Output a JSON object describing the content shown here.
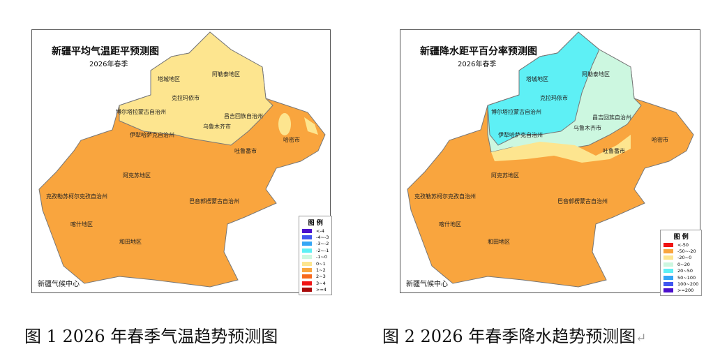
{
  "map1": {
    "title": "新疆平均气温距平预测图",
    "subtitle": "2026年春季",
    "org": "新疆气候中心",
    "regions": [
      "塔城地区",
      "阿勒泰地区",
      "克拉玛依市",
      "博尔塔拉蒙古自治州",
      "昌吉回族自治州",
      "伊犁哈萨克自治州",
      "乌鲁木齐市",
      "哈密市",
      "吐鲁番市",
      "阿克苏地区",
      "克孜勒苏柯尔克孜自治州",
      "巴音郭楞蒙古自治州",
      "喀什地区",
      "和田地区"
    ],
    "legend": {
      "title": "图 例",
      "items": [
        {
          "label": "<-4",
          "color": "#4b0fcc"
        },
        {
          "label": "-4~-3",
          "color": "#4056f0"
        },
        {
          "label": "-3~-2",
          "color": "#35a6f5"
        },
        {
          "label": "-2~-1",
          "color": "#5ef0f5"
        },
        {
          "label": "-1~0",
          "color": "#ccf7e0"
        },
        {
          "label": "0~1",
          "color": "#fde58f"
        },
        {
          "label": "1~2",
          "color": "#f9a53e"
        },
        {
          "label": "2~3",
          "color": "#f7681c"
        },
        {
          "label": "3~4",
          "color": "#f01414"
        },
        {
          "label": ">=4",
          "color": "#a80a0a"
        }
      ]
    }
  },
  "map2": {
    "title": "新疆降水距平百分率预测图",
    "subtitle": "2026年春季",
    "org": "新疆气候中心",
    "regions": [
      "塔城地区",
      "阿勒泰地区",
      "克拉玛依市",
      "博尔塔拉蒙古自治州",
      "昌吉回族自治州",
      "伊犁哈萨克自治州",
      "乌鲁木齐市",
      "哈密市",
      "吐鲁番市",
      "阿克苏地区",
      "克孜勒苏柯尔克孜自治州",
      "巴音郭楞蒙古自治州",
      "喀什地区",
      "和田地区"
    ],
    "legend": {
      "title": "图 例",
      "items": [
        {
          "label": "<-50",
          "color": "#f01414"
        },
        {
          "label": "-50~-20",
          "color": "#f9a53e"
        },
        {
          "label": "-20~0",
          "color": "#fde58f"
        },
        {
          "label": "0~20",
          "color": "#ccf7e0"
        },
        {
          "label": "20~50",
          "color": "#5ef0f5"
        },
        {
          "label": "50~100",
          "color": "#35a6f5"
        },
        {
          "label": "100~200",
          "color": "#4056f0"
        },
        {
          "label": ">=200",
          "color": "#4b0fcc"
        }
      ]
    }
  },
  "captions": [
    "图 1 2026 年春季气温趋势预测图",
    "图 2 2026 年春季降水趋势预测图"
  ],
  "paragraph_mark": "↵"
}
